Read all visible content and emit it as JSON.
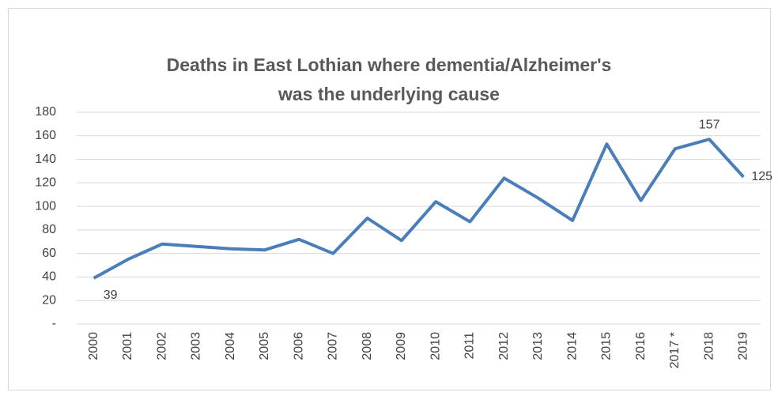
{
  "chart_data": {
    "type": "line",
    "title": "Deaths in East Lothian where dementia/Alzheimer's was the underlying cause",
    "categories": [
      "2000",
      "2001",
      "2002",
      "2003",
      "2004",
      "2005",
      "2006",
      "2007",
      "2008",
      "2009",
      "2010",
      "2011",
      "2012",
      "2013",
      "2014",
      "2015",
      "2016",
      "2017 *",
      "2018",
      "2019"
    ],
    "series": [
      {
        "color": "#4a7ebb",
        "values": [
          39,
          55,
          68,
          66,
          64,
          63,
          72,
          60,
          90,
          71,
          104,
          87,
          124,
          107,
          88,
          153,
          105,
          149,
          157,
          125
        ]
      }
    ],
    "value_labels": [
      "39",
      null,
      null,
      null,
      null,
      null,
      null,
      null,
      null,
      null,
      null,
      null,
      null,
      null,
      null,
      null,
      null,
      null,
      "157",
      "125"
    ],
    "ylim": [
      0,
      180
    ],
    "yticks": [
      {
        "value": 0,
        "label": "-"
      },
      20,
      40,
      60,
      80,
      100,
      120,
      140,
      160,
      180
    ],
    "grid": true
  }
}
